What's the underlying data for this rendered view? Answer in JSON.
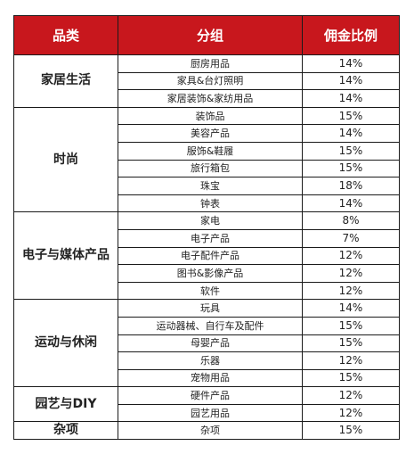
{
  "header": {
    "category": "品类",
    "group": "分组",
    "rate": "佣金比例"
  },
  "categories": [
    {
      "name": "家居生活",
      "rows": [
        {
          "group": "厨房用品",
          "rate": "14%"
        },
        {
          "group": "家具&台灯照明",
          "rate": "14%"
        },
        {
          "group": "家居装饰&家纺用品",
          "rate": "14%"
        }
      ]
    },
    {
      "name": "时尚",
      "rows": [
        {
          "group": "装饰品",
          "rate": "15%"
        },
        {
          "group": "美容产品",
          "rate": "14%"
        },
        {
          "group": "服饰&鞋履",
          "rate": "15%"
        },
        {
          "group": "旅行箱包",
          "rate": "15%"
        },
        {
          "group": "珠宝",
          "rate": "18%"
        },
        {
          "group": "钟表",
          "rate": "14%"
        }
      ]
    },
    {
      "name": "电子与媒体产品",
      "rows": [
        {
          "group": "家电",
          "rate": "8%"
        },
        {
          "group": "电子产品",
          "rate": "7%"
        },
        {
          "group": "电子配件产品",
          "rate": "12%"
        },
        {
          "group": "图书&影像产品",
          "rate": "12%"
        },
        {
          "group": "软件",
          "rate": "12%"
        }
      ]
    },
    {
      "name": "运动与休闲",
      "rows": [
        {
          "group": "玩具",
          "rate": "14%"
        },
        {
          "group": "运动器械、自行车及配件",
          "rate": "15%"
        },
        {
          "group": "母婴产品",
          "rate": "15%"
        },
        {
          "group": "乐器",
          "rate": "12%"
        },
        {
          "group": "宠物用品",
          "rate": "15%"
        }
      ]
    },
    {
      "name": "园艺与DIY",
      "rows": [
        {
          "group": "硬件产品",
          "rate": "12%"
        },
        {
          "group": "园艺用品",
          "rate": "12%"
        }
      ]
    },
    {
      "name": "杂项",
      "rows": [
        {
          "group": "杂项",
          "rate": "15%"
        }
      ]
    }
  ]
}
